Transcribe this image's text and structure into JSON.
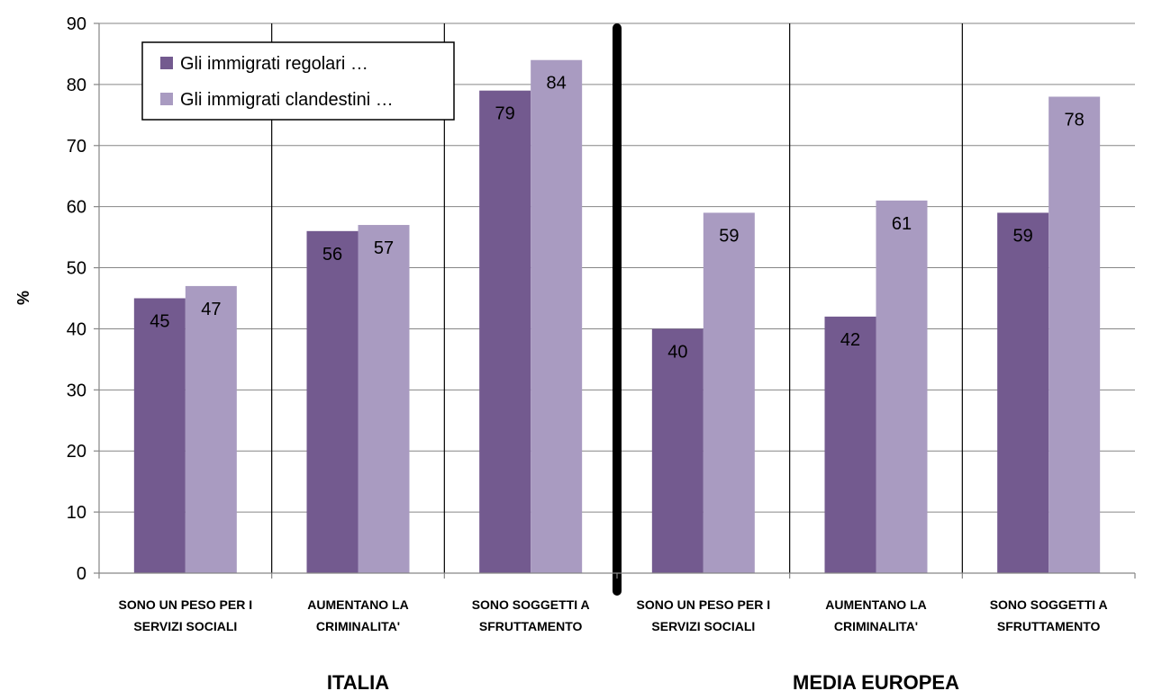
{
  "chart_data": {
    "type": "bar",
    "title": "",
    "xlabel": "",
    "ylabel": "%",
    "ylim": [
      0,
      90
    ],
    "yticks": [
      0,
      10,
      20,
      30,
      40,
      50,
      60,
      70,
      80,
      90
    ],
    "grid": true,
    "legend_position": "top-left",
    "groups": [
      {
        "label": "ITALIA",
        "categories": [
          [
            "SONO UN PESO PER I",
            "SERVIZI SOCIALI"
          ],
          [
            "AUMENTANO LA",
            "CRIMINALITA'"
          ],
          [
            "SONO SOGGETTI A",
            "SFRUTTAMENTO"
          ]
        ]
      },
      {
        "label": "MEDIA EUROPEA",
        "categories": [
          [
            "SONO UN PESO PER I",
            "SERVIZI SOCIALI"
          ],
          [
            "AUMENTANO LA",
            "CRIMINALITA'"
          ],
          [
            "SONO SOGGETTI A",
            "SFRUTTAMENTO"
          ]
        ]
      }
    ],
    "series": [
      {
        "name": "Gli immigrati regolari …",
        "color": "#735A8F",
        "values": [
          45,
          56,
          79,
          40,
          42,
          59
        ]
      },
      {
        "name": "Gli immigrati clandestini …",
        "color": "#A99BC1",
        "values": [
          47,
          57,
          84,
          59,
          61,
          78
        ]
      }
    ]
  }
}
